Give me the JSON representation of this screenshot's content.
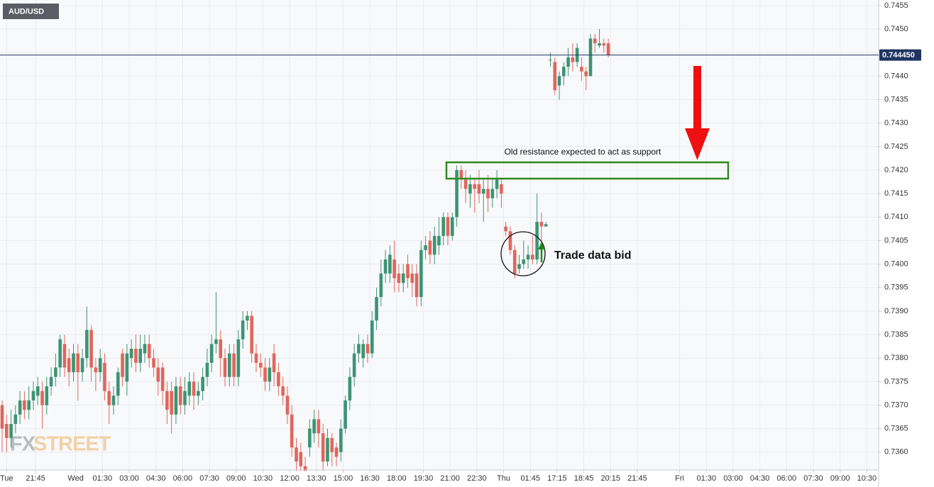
{
  "chart_data": {
    "type": "candlestick",
    "title": "AUD/USD",
    "x": [
      0,
      1,
      2,
      3,
      4,
      5,
      6,
      7,
      8,
      9,
      10,
      11,
      12,
      13,
      14,
      15,
      16,
      17,
      18,
      19,
      20,
      21,
      22,
      23,
      24,
      25,
      26,
      27,
      28,
      29,
      30,
      31,
      32,
      33,
      34,
      35,
      36,
      37,
      38,
      39,
      40,
      41,
      42,
      43,
      44,
      45,
      46,
      47,
      48,
      49,
      50,
      51,
      52,
      53,
      54,
      55,
      56,
      57,
      58,
      59,
      60,
      61,
      62,
      63,
      64,
      65,
      66,
      67,
      68,
      69,
      70,
      71,
      72,
      73,
      74,
      75,
      76,
      77,
      78,
      79,
      80,
      81,
      82,
      83,
      84,
      85,
      86,
      87,
      88,
      89,
      90,
      91,
      92,
      93,
      94,
      95,
      96,
      97,
      98,
      99,
      100,
      101,
      102,
      103,
      104,
      105,
      106,
      107,
      108,
      109,
      110,
      111,
      112,
      113,
      114,
      115,
      116,
      117,
      118,
      119,
      120,
      121,
      122,
      123,
      124,
      125,
      126,
      127,
      128,
      129,
      130,
      131,
      132,
      133,
      134,
      135,
      136
    ],
    "open": [
      0.737,
      0.7366,
      0.7363,
      0.7366,
      0.7368,
      0.7371,
      0.7369,
      0.7371,
      0.7372,
      0.7373,
      0.737,
      0.7374,
      0.7376,
      0.7378,
      0.7383,
      0.738,
      0.7377,
      0.7381,
      0.7377,
      0.738,
      0.7386,
      0.7378,
      0.7377,
      0.7379,
      0.7373,
      0.737,
      0.7372,
      0.7381,
      0.7375,
      0.738,
      0.7382,
      0.7379,
      0.7381,
      0.7383,
      0.738,
      0.7378,
      0.7378,
      0.7373,
      0.7373,
      0.7368,
      0.7374,
      0.737,
      0.7372,
      0.7375,
      0.7372,
      0.7373,
      0.7376,
      0.7379,
      0.7383,
      0.7384,
      0.738,
      0.7376,
      0.7381,
      0.7376,
      0.7384,
      0.7388,
      0.7389,
      0.7381,
      0.7379,
      0.7378,
      0.7375,
      0.7381,
      0.7377,
      0.7374,
      0.7372,
      0.7368,
      0.7361,
      0.736,
      0.7357,
      0.7361,
      0.7364,
      0.7367,
      0.7364,
      0.7358,
      0.7363,
      0.7361,
      0.736,
      0.7365,
      0.7371,
      0.7376,
      0.7381,
      0.738,
      0.7383,
      0.7381,
      0.7388,
      0.7393,
      0.7398,
      0.7398,
      0.7401,
      0.7398,
      0.7396,
      0.74,
      0.7398,
      0.7398,
      0.7393,
      0.7403,
      0.7405,
      0.7402,
      0.7404,
      0.7406,
      0.741,
      0.7406,
      0.741,
      0.742,
      0.7418,
      0.7415,
      0.7417,
      0.7417,
      0.7415,
      0.7416,
      0.7414,
      0.7416,
      0.7417,
      0.7408,
      0.7407,
      0.7403,
      0.7399,
      0.74,
      0.7401,
      0.7402,
      0.7401,
      0.7409,
      0.7408,
      0.74435,
      0.7443,
      0.7438,
      0.744,
      0.7442,
      0.7444,
      0.7443,
      0.7442,
      0.7441,
      0.744,
      0.7448,
      0.74465,
      0.7447,
      0.7447
    ],
    "high": [
      0.7371,
      0.7368,
      0.7369,
      0.737,
      0.7373,
      0.7373,
      0.7374,
      0.7375,
      0.7376,
      0.7375,
      0.7376,
      0.7378,
      0.7381,
      0.7385,
      0.7385,
      0.7382,
      0.7383,
      0.7383,
      0.7382,
      0.7391,
      0.7387,
      0.738,
      0.7382,
      0.7381,
      0.7375,
      0.7374,
      0.7378,
      0.7382,
      0.7383,
      0.7384,
      0.7385,
      0.7385,
      0.7385,
      0.7385,
      0.7382,
      0.738,
      0.7379,
      0.7375,
      0.7375,
      0.7376,
      0.7376,
      0.7376,
      0.7377,
      0.7377,
      0.7375,
      0.7378,
      0.7382,
      0.7385,
      0.7394,
      0.7386,
      0.7382,
      0.7383,
      0.7383,
      0.7386,
      0.739,
      0.739,
      0.739,
      0.7383,
      0.7381,
      0.738,
      0.738,
      0.7383,
      0.7379,
      0.7376,
      0.7374,
      0.737,
      0.7363,
      0.7362,
      0.7359,
      0.7367,
      0.7369,
      0.7369,
      0.7366,
      0.7365,
      0.7364,
      0.7362,
      0.7367,
      0.7372,
      0.7378,
      0.7383,
      0.7385,
      0.7384,
      0.7385,
      0.739,
      0.7395,
      0.7401,
      0.7403,
      0.7404,
      0.7405,
      0.74,
      0.74,
      0.7402,
      0.74,
      0.74,
      0.7405,
      0.7406,
      0.7407,
      0.7408,
      0.741,
      0.7411,
      0.7411,
      0.7411,
      0.7421,
      0.7421,
      0.742,
      0.7419,
      0.7418,
      0.742,
      0.7418,
      0.7419,
      0.7418,
      0.742,
      0.7418,
      0.7409,
      0.7408,
      0.7404,
      0.7402,
      0.7405,
      0.7404,
      0.7406,
      0.7415,
      0.7411,
      0.7409,
      0.7445,
      0.7444,
      0.7441,
      0.7443,
      0.7446,
      0.7447,
      0.7447,
      0.7444,
      0.7442,
      0.7449,
      0.7449,
      0.745,
      0.7448,
      0.7448
    ],
    "low": [
      0.736,
      0.736,
      0.7361,
      0.7364,
      0.7366,
      0.7367,
      0.7367,
      0.7369,
      0.737,
      0.7365,
      0.7368,
      0.7372,
      0.7374,
      0.7376,
      0.7376,
      0.7374,
      0.7375,
      0.7371,
      0.7375,
      0.7378,
      0.7375,
      0.7373,
      0.7375,
      0.7371,
      0.7366,
      0.7368,
      0.737,
      0.7374,
      0.7372,
      0.7378,
      0.7377,
      0.7377,
      0.7379,
      0.7378,
      0.7376,
      0.7372,
      0.737,
      0.7366,
      0.7364,
      0.7366,
      0.7368,
      0.7368,
      0.737,
      0.7369,
      0.737,
      0.7371,
      0.7374,
      0.7377,
      0.7381,
      0.7376,
      0.7374,
      0.7374,
      0.7374,
      0.7374,
      0.7382,
      0.7386,
      0.7379,
      0.7377,
      0.7376,
      0.7373,
      0.7373,
      0.7374,
      0.7372,
      0.737,
      0.7366,
      0.7359,
      0.7356,
      0.7356,
      0.7356,
      0.7359,
      0.7362,
      0.7361,
      0.7356,
      0.7357,
      0.7357,
      0.7357,
      0.7358,
      0.7364,
      0.7369,
      0.7374,
      0.7379,
      0.7378,
      0.7379,
      0.738,
      0.7386,
      0.7391,
      0.7396,
      0.7396,
      0.7394,
      0.7394,
      0.7394,
      0.7395,
      0.7393,
      0.7391,
      0.7391,
      0.7401,
      0.74,
      0.74,
      0.7402,
      0.7404,
      0.7404,
      0.7405,
      0.7408,
      0.7416,
      0.7413,
      0.7412,
      0.7411,
      0.7413,
      0.7409,
      0.7411,
      0.7412,
      0.7414,
      0.7412,
      0.7406,
      0.7402,
      0.7397,
      0.7398,
      0.7399,
      0.7399,
      0.74,
      0.74,
      0.7405,
      0.7408,
      0.7442,
      0.7436,
      0.7435,
      0.7438,
      0.744,
      0.7441,
      0.7442,
      0.7439,
      0.7437,
      0.744,
      0.7445,
      0.7446,
      0.7445,
      0.7444
    ],
    "close": [
      0.7365,
      0.7363,
      0.7366,
      0.7368,
      0.7371,
      0.7369,
      0.7371,
      0.7373,
      0.7374,
      0.737,
      0.7374,
      0.7376,
      0.7378,
      0.7384,
      0.7378,
      0.7377,
      0.7381,
      0.7377,
      0.738,
      0.7386,
      0.7378,
      0.7377,
      0.738,
      0.7373,
      0.737,
      0.7372,
      0.7377,
      0.7376,
      0.7381,
      0.7382,
      0.7379,
      0.7382,
      0.7383,
      0.738,
      0.7378,
      0.7375,
      0.7373,
      0.7369,
      0.7368,
      0.7374,
      0.737,
      0.7373,
      0.7375,
      0.7372,
      0.7373,
      0.7376,
      0.7379,
      0.7383,
      0.7384,
      0.738,
      0.7376,
      0.7381,
      0.7376,
      0.7384,
      0.7388,
      0.7389,
      0.7381,
      0.7379,
      0.7378,
      0.7375,
      0.7378,
      0.7377,
      0.7374,
      0.7372,
      0.7368,
      0.7361,
      0.7358,
      0.7357,
      0.7356,
      0.7365,
      0.7367,
      0.7364,
      0.7358,
      0.7363,
      0.736,
      0.7359,
      0.7365,
      0.7371,
      0.7376,
      0.7381,
      0.7383,
      0.7383,
      0.7381,
      0.7388,
      0.7393,
      0.7398,
      0.7401,
      0.7402,
      0.7397,
      0.7396,
      0.7398,
      0.7397,
      0.7396,
      0.7393,
      0.7403,
      0.7404,
      0.7402,
      0.7406,
      0.7406,
      0.741,
      0.7406,
      0.741,
      0.742,
      0.7418,
      0.7416,
      0.7417,
      0.7416,
      0.7415,
      0.7416,
      0.7414,
      0.7416,
      0.7418,
      0.7415,
      0.7407,
      0.7403,
      0.7398,
      0.74,
      0.7401,
      0.7402,
      0.7401,
      0.7409,
      0.7408,
      0.74085,
      0.74435,
      0.7437,
      0.744,
      0.7442,
      0.7444,
      0.7443,
      0.7446,
      0.7441,
      0.744,
      0.7448,
      0.7447,
      0.7447,
      0.74465,
      0.74445
    ],
    "up_color": "#3c9474",
    "down_color": "#e0665c",
    "xlim": [
      -0.48,
      196.65
    ],
    "xticks": [
      {
        "value": 1,
        "label": "Tue"
      },
      {
        "value": 7.5,
        "label": "21:45"
      },
      {
        "value": 16.5,
        "label": "Wed"
      },
      {
        "value": 22.5,
        "label": "01:30"
      },
      {
        "value": 28.5,
        "label": "03:00"
      },
      {
        "value": 34.5,
        "label": "04:30"
      },
      {
        "value": 40.5,
        "label": "06:00"
      },
      {
        "value": 46.5,
        "label": "07:30"
      },
      {
        "value": 52.5,
        "label": "09:00"
      },
      {
        "value": 58.5,
        "label": "10:30"
      },
      {
        "value": 64.5,
        "label": "12:00"
      },
      {
        "value": 70.5,
        "label": "13:30"
      },
      {
        "value": 76.5,
        "label": "15:00"
      },
      {
        "value": 82.5,
        "label": "16:30"
      },
      {
        "value": 88.5,
        "label": "18:00"
      },
      {
        "value": 94.5,
        "label": "19:30"
      },
      {
        "value": 100.5,
        "label": "21:00"
      },
      {
        "value": 106.5,
        "label": "22:30"
      },
      {
        "value": 112.5,
        "label": "Thu"
      },
      {
        "value": 118.5,
        "label": "01:45"
      },
      {
        "value": 124.5,
        "label": "17:15"
      },
      {
        "value": 130.5,
        "label": "18:45"
      },
      {
        "value": 136.5,
        "label": "20:15"
      },
      {
        "value": 142.5,
        "label": "21:45"
      },
      {
        "value": 152,
        "label": "Fri"
      },
      {
        "value": 158,
        "label": "01:30"
      },
      {
        "value": 164,
        "label": "03:00"
      },
      {
        "value": 170,
        "label": "04:30"
      },
      {
        "value": 176,
        "label": "06:00"
      },
      {
        "value": 182,
        "label": "07:30"
      },
      {
        "value": 188,
        "label": "09:00"
      },
      {
        "value": 194,
        "label": "10:30"
      }
    ],
    "ylim": [
      0.73562,
      0.74562
    ],
    "yticks": [
      0.7455,
      {
        "value": 0.745,
        "label": "0.7450"
      },
      0.7445,
      {
        "value": 0.744,
        "label": "0.7440"
      },
      0.7435,
      {
        "value": 0.743,
        "label": "0.7430"
      },
      0.7425,
      {
        "value": 0.742,
        "label": "0.7420"
      },
      0.7415,
      {
        "value": 0.741,
        "label": "0.7410"
      },
      0.7405,
      {
        "value": 0.74,
        "label": "0.7400"
      },
      0.7395,
      {
        "value": 0.739,
        "label": "0.7390"
      },
      0.7385,
      {
        "value": 0.738,
        "label": "0.7380"
      },
      0.7375,
      {
        "value": 0.737,
        "label": "0.7370"
      },
      0.7365,
      {
        "value": 0.736,
        "label": "0.7360"
      }
    ],
    "grid": true,
    "last_price": {
      "value": 0.74445,
      "label": "0.744450",
      "color": "#1f3562"
    },
    "annotations": {
      "zone": "Old resistance expected to act as support",
      "note": "Trade data bid"
    },
    "watermark": {
      "fx": "FX",
      "street": "STREET"
    }
  }
}
